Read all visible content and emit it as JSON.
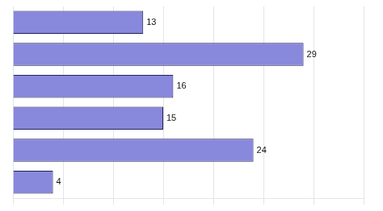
{
  "chart_data": {
    "type": "bar",
    "orientation": "horizontal",
    "categories": [
      null,
      null,
      null,
      null,
      null,
      null
    ],
    "values": [
      13,
      29,
      16,
      15,
      24,
      4
    ],
    "color": "#8888dd",
    "xlim": [
      0,
      35
    ],
    "xticks": [
      0,
      5,
      10,
      15,
      20,
      25,
      30,
      35
    ],
    "grid": true,
    "data_labels": true,
    "tick_labels": false
  }
}
